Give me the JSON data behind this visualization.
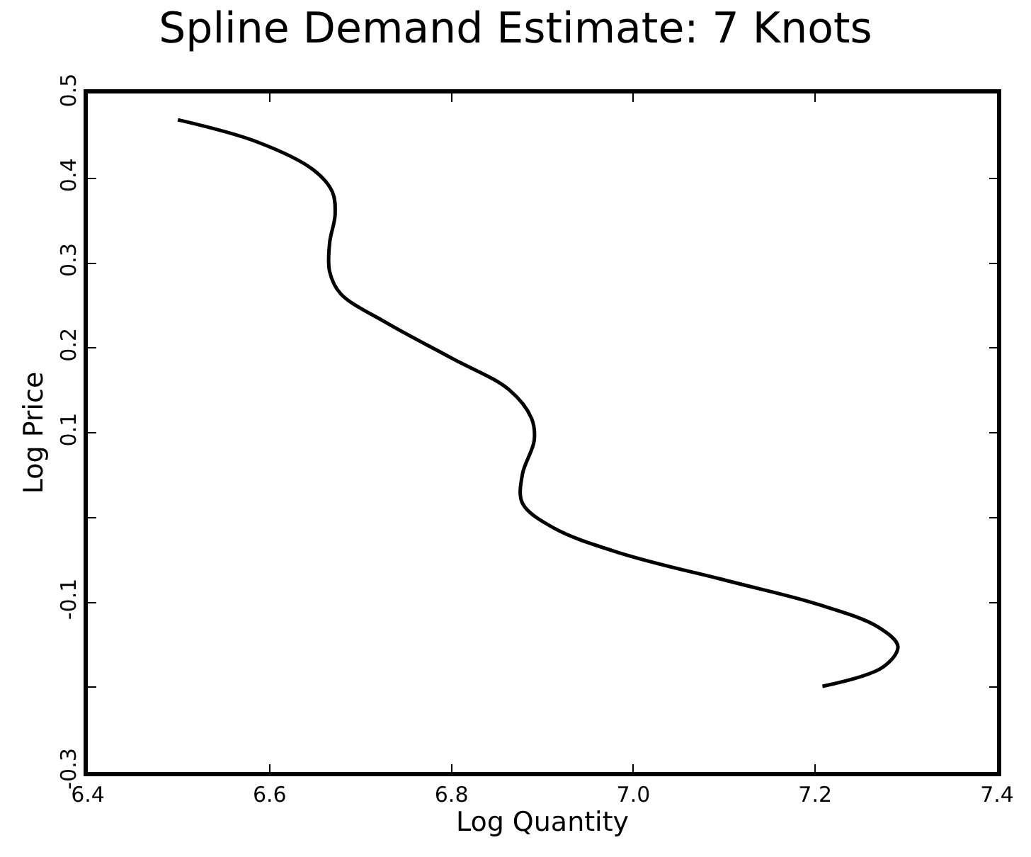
{
  "chart_data": {
    "type": "line",
    "title": "Spline Demand Estimate: 7 Knots",
    "xlabel": "Log Quantity",
    "ylabel": "Log Price",
    "x": [
      6.499,
      6.586,
      6.648,
      6.669,
      6.672,
      6.666,
      6.666,
      6.678,
      6.728,
      6.802,
      6.863,
      6.888,
      6.891,
      6.878,
      6.878,
      6.912,
      6.986,
      7.109,
      7.202,
      7.269,
      7.291,
      7.275,
      7.208
    ],
    "series": [
      {
        "color": "#000000",
        "values": [
          0.469,
          0.443,
          0.41,
          0.384,
          0.357,
          0.324,
          0.29,
          0.264,
          0.23,
          0.187,
          0.151,
          0.117,
          0.091,
          0.051,
          0.017,
          -0.012,
          -0.042,
          -0.076,
          -0.102,
          -0.129,
          -0.152,
          -0.176,
          -0.199
        ]
      }
    ],
    "xlim": [
      6.4,
      7.4
    ],
    "ylim": [
      -0.3,
      0.5
    ],
    "xticks": [
      {
        "value": 6.4,
        "label": "6.4"
      },
      {
        "value": 6.6,
        "label": "6.6"
      },
      {
        "value": 6.8,
        "label": "6.8"
      },
      {
        "value": 7.0,
        "label": "7.0"
      },
      {
        "value": 7.2,
        "label": "7.2"
      },
      {
        "value": 7.4,
        "label": "7.4"
      }
    ],
    "yticks": [
      -0.3,
      {
        "value": -0.2,
        "label": null
      },
      -0.1,
      {
        "value": 0,
        "label": null
      },
      0.1,
      0.2,
      0.3,
      0.4,
      0.5
    ],
    "marker": "none",
    "line_style": "solid"
  }
}
